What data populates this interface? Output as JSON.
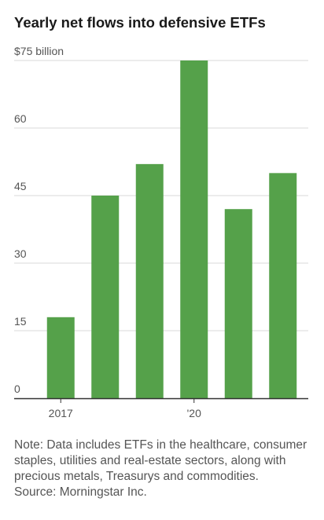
{
  "title": "Yearly net flows into defensive ETFs",
  "note": "Note: Data includes ETFs in the healthcare, consumer staples, utilities and real-estate sectors, along with precious metals, Treasurys and commodities.",
  "source": "Source: Morningstar Inc.",
  "colors": {
    "bar": "#55a14a",
    "grid": "#d9d9d9",
    "axis": "#333333",
    "tick_text": "#555555"
  },
  "chart_data": {
    "type": "bar",
    "title": "Yearly net flows into defensive ETFs",
    "categories": [
      "2017",
      "",
      "",
      "'20",
      "",
      ""
    ],
    "values": [
      18,
      45,
      52,
      75,
      42,
      50
    ],
    "ylim": [
      0,
      75
    ],
    "y_ticks": [
      0,
      15,
      30,
      45,
      60,
      75
    ],
    "y_tick_labels": [
      "0",
      "15",
      "30",
      "45",
      "60",
      "$75 billion"
    ],
    "xlabel": "",
    "ylabel": "",
    "grid": true
  }
}
